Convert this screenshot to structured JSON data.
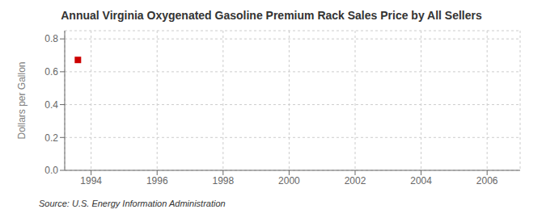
{
  "chart_data": {
    "type": "scatter",
    "title": "Annual Virginia Oxygenated Gasoline Premium Rack Sales Price by All Sellers",
    "ylabel": "Dollars per Gallon",
    "annotations": [
      "Source: U.S. Energy Information Administration"
    ],
    "x": [
      1993.6
    ],
    "values": [
      0.672
    ],
    "color": "#cc0000",
    "marker": "square",
    "xlim": [
      1993.2,
      2007.0
    ],
    "ylim": [
      0.0,
      0.85
    ],
    "xticks": [
      1994,
      1996,
      1998,
      2000,
      2002,
      2004,
      2006
    ],
    "yticks": [
      {
        "value": 0.0,
        "label": "0.0"
      },
      0.2,
      0.4,
      0.6,
      0.8
    ],
    "grid": true
  }
}
